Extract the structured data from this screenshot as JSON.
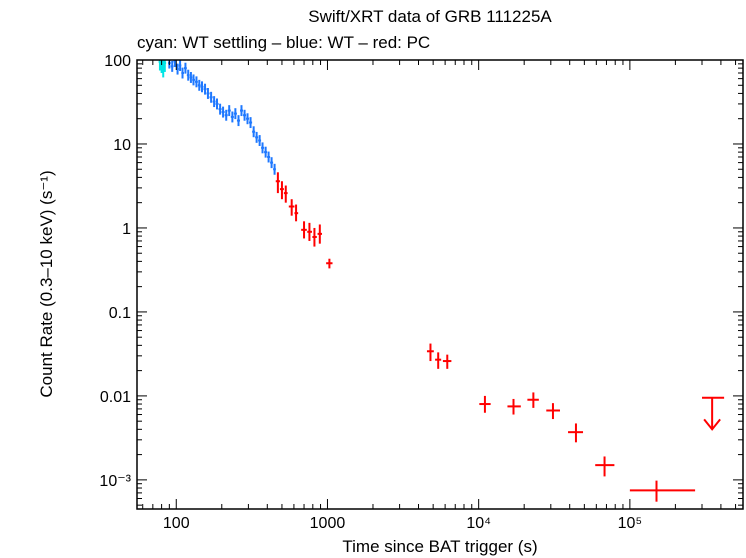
{
  "chart_data": {
    "type": "scatter",
    "title": "Swift/XRT data of GRB 111225A",
    "subtitle": "cyan: WT settling – blue: WT – red: PC",
    "xlabel": "Time since BAT trigger (s)",
    "ylabel": "Count Rate (0.3–10 keV) (s⁻¹)",
    "xscale": "log",
    "yscale": "log",
    "xlim": [
      55,
      560000
    ],
    "ylim": [
      0.00045,
      100
    ],
    "xticks": [
      {
        "value": 100,
        "label": "100"
      },
      {
        "value": 1000,
        "label": "1000"
      },
      {
        "value": 10000,
        "label": "10⁴"
      },
      {
        "value": 100000,
        "label": "10⁵"
      }
    ],
    "yticks": [
      {
        "value": 100,
        "label": "100"
      },
      {
        "value": 10,
        "label": "10"
      },
      {
        "value": 1,
        "label": "1"
      },
      {
        "value": 0.1,
        "label": "0.1"
      },
      {
        "value": 0.01,
        "label": "0.01"
      },
      {
        "value": 0.001,
        "label": "10⁻³"
      }
    ],
    "colors": {
      "wt_settling": "#00e5e5",
      "wt": "#1e78ff",
      "pc": "#ff0000"
    },
    "series": [
      {
        "name": "WT settling",
        "color": "#00e5e5",
        "points": [
          {
            "x": 78,
            "y": 95,
            "ylo": 75,
            "yhi": 100
          },
          {
            "x": 80,
            "y": 90,
            "ylo": 70,
            "yhi": 100
          },
          {
            "x": 82,
            "y": 88,
            "ylo": 62,
            "yhi": 100
          },
          {
            "x": 84,
            "y": 92,
            "ylo": 72,
            "yhi": 100
          }
        ]
      },
      {
        "name": "WT",
        "color": "#1e78ff",
        "points": [
          {
            "x": 90,
            "y": 92
          },
          {
            "x": 94,
            "y": 84
          },
          {
            "x": 98,
            "y": 96
          },
          {
            "x": 102,
            "y": 78
          },
          {
            "x": 106,
            "y": 86
          },
          {
            "x": 110,
            "y": 70
          },
          {
            "x": 115,
            "y": 80
          },
          {
            "x": 120,
            "y": 66
          },
          {
            "x": 125,
            "y": 62
          },
          {
            "x": 130,
            "y": 58
          },
          {
            "x": 136,
            "y": 55
          },
          {
            "x": 142,
            "y": 50
          },
          {
            "x": 148,
            "y": 48
          },
          {
            "x": 155,
            "y": 45
          },
          {
            "x": 162,
            "y": 40
          },
          {
            "x": 170,
            "y": 36
          },
          {
            "x": 178,
            "y": 32
          },
          {
            "x": 186,
            "y": 30
          },
          {
            "x": 195,
            "y": 26
          },
          {
            "x": 204,
            "y": 24
          },
          {
            "x": 214,
            "y": 22
          },
          {
            "x": 224,
            "y": 25
          },
          {
            "x": 235,
            "y": 21
          },
          {
            "x": 246,
            "y": 23
          },
          {
            "x": 258,
            "y": 19
          },
          {
            "x": 270,
            "y": 25
          },
          {
            "x": 283,
            "y": 22
          },
          {
            "x": 296,
            "y": 20
          },
          {
            "x": 310,
            "y": 18
          },
          {
            "x": 325,
            "y": 14
          },
          {
            "x": 340,
            "y": 12
          },
          {
            "x": 356,
            "y": 11
          },
          {
            "x": 372,
            "y": 9
          },
          {
            "x": 390,
            "y": 8
          },
          {
            "x": 408,
            "y": 7
          },
          {
            "x": 427,
            "y": 6
          },
          {
            "x": 447,
            "y": 5
          }
        ]
      },
      {
        "name": "PC",
        "color": "#ff0000",
        "points": [
          {
            "x": 470,
            "xlo": 455,
            "xhi": 485,
            "y": 3.6,
            "ylo": 2.6,
            "yhi": 4.6
          },
          {
            "x": 500,
            "xlo": 485,
            "xhi": 515,
            "y": 2.9,
            "ylo": 2.2,
            "yhi": 3.6
          },
          {
            "x": 530,
            "xlo": 515,
            "xhi": 545,
            "y": 2.6,
            "ylo": 2.0,
            "yhi": 3.2
          },
          {
            "x": 580,
            "xlo": 555,
            "xhi": 605,
            "y": 1.8,
            "ylo": 1.4,
            "yhi": 2.2
          },
          {
            "x": 620,
            "xlo": 605,
            "xhi": 640,
            "y": 1.5,
            "ylo": 1.2,
            "yhi": 1.9
          },
          {
            "x": 700,
            "xlo": 670,
            "xhi": 730,
            "y": 0.95,
            "ylo": 0.75,
            "yhi": 1.2
          },
          {
            "x": 760,
            "xlo": 735,
            "xhi": 790,
            "y": 0.9,
            "ylo": 0.7,
            "yhi": 1.15
          },
          {
            "x": 820,
            "xlo": 795,
            "xhi": 850,
            "y": 0.78,
            "ylo": 0.6,
            "yhi": 1.0
          },
          {
            "x": 890,
            "xlo": 860,
            "xhi": 920,
            "y": 0.85,
            "ylo": 0.65,
            "yhi": 1.1
          },
          {
            "x": 1030,
            "xlo": 980,
            "xhi": 1080,
            "y": 0.38,
            "ylo": 0.33,
            "yhi": 0.43
          },
          {
            "x": 4800,
            "xlo": 4550,
            "xhi": 5050,
            "y": 0.034,
            "ylo": 0.026,
            "yhi": 0.042
          },
          {
            "x": 5400,
            "xlo": 5150,
            "xhi": 5650,
            "y": 0.027,
            "ylo": 0.021,
            "yhi": 0.033
          },
          {
            "x": 6200,
            "xlo": 5800,
            "xhi": 6600,
            "y": 0.026,
            "ylo": 0.021,
            "yhi": 0.031
          },
          {
            "x": 11000,
            "xlo": 10100,
            "xhi": 12000,
            "y": 0.008,
            "ylo": 0.0063,
            "yhi": 0.01
          },
          {
            "x": 17000,
            "xlo": 15500,
            "xhi": 19000,
            "y": 0.0075,
            "ylo": 0.006,
            "yhi": 0.0092
          },
          {
            "x": 23000,
            "xlo": 21000,
            "xhi": 25000,
            "y": 0.009,
            "ylo": 0.0072,
            "yhi": 0.011
          },
          {
            "x": 31000,
            "xlo": 28000,
            "xhi": 34500,
            "y": 0.0067,
            "ylo": 0.0053,
            "yhi": 0.0082
          },
          {
            "x": 44000,
            "xlo": 39000,
            "xhi": 49000,
            "y": 0.0037,
            "ylo": 0.0028,
            "yhi": 0.0047
          },
          {
            "x": 68000,
            "xlo": 59000,
            "xhi": 79000,
            "y": 0.0015,
            "ylo": 0.0011,
            "yhi": 0.0019
          },
          {
            "x": 150000,
            "xlo": 100000,
            "xhi": 270000,
            "y": 0.00075,
            "ylo": 0.00055,
            "yhi": 0.00098
          }
        ]
      }
    ],
    "upper_limits": [
      {
        "name": "PC upper limit",
        "color": "#ff0000",
        "x": 350000,
        "xlo": 300000,
        "xhi": 420000,
        "y": 0.0095,
        "arrow_to": 0.004
      }
    ]
  }
}
